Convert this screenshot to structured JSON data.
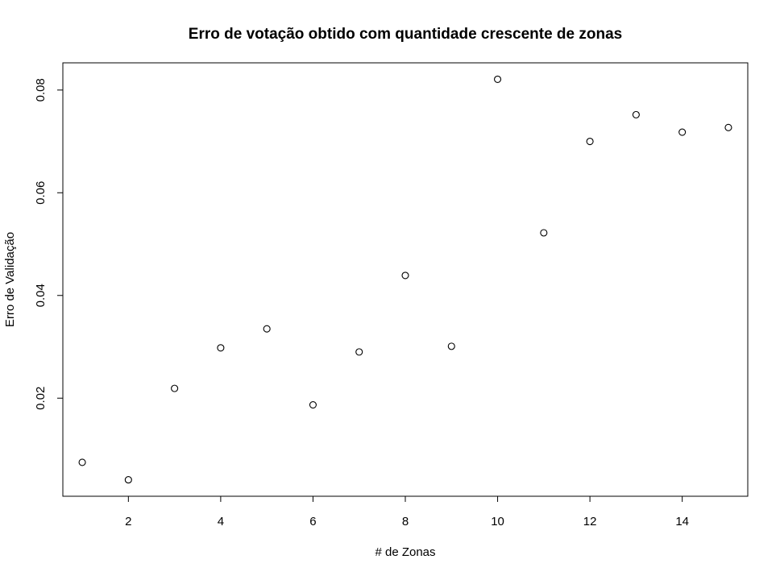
{
  "chart_data": {
    "type": "scatter",
    "title": "Erro de votação obtido com quantidade crescente de zonas",
    "xlabel": "# de Zonas",
    "ylabel": "Erro de Validação",
    "x": [
      1,
      2,
      3,
      4,
      5,
      6,
      7,
      8,
      9,
      10,
      11,
      12,
      13,
      14,
      15
    ],
    "y": [
      0.0075,
      0.0041,
      0.0219,
      0.0298,
      0.0335,
      0.0187,
      0.029,
      0.0439,
      0.0301,
      0.0821,
      0.0522,
      0.07,
      0.0752,
      0.0718,
      0.0727
    ],
    "xlim": [
      0.58,
      15.42
    ],
    "ylim": [
      0.0009,
      0.0853
    ],
    "xticks": [
      2,
      4,
      6,
      8,
      10,
      12,
      14
    ],
    "yticks": [
      0.02,
      0.04,
      0.06,
      0.08
    ],
    "xtick_labels": [
      "2",
      "4",
      "6",
      "8",
      "10",
      "12",
      "14"
    ],
    "ytick_labels": [
      "0.02",
      "0.04",
      "0.06",
      "0.08"
    ],
    "marker": "open-circle",
    "grid": false,
    "legend": false
  }
}
